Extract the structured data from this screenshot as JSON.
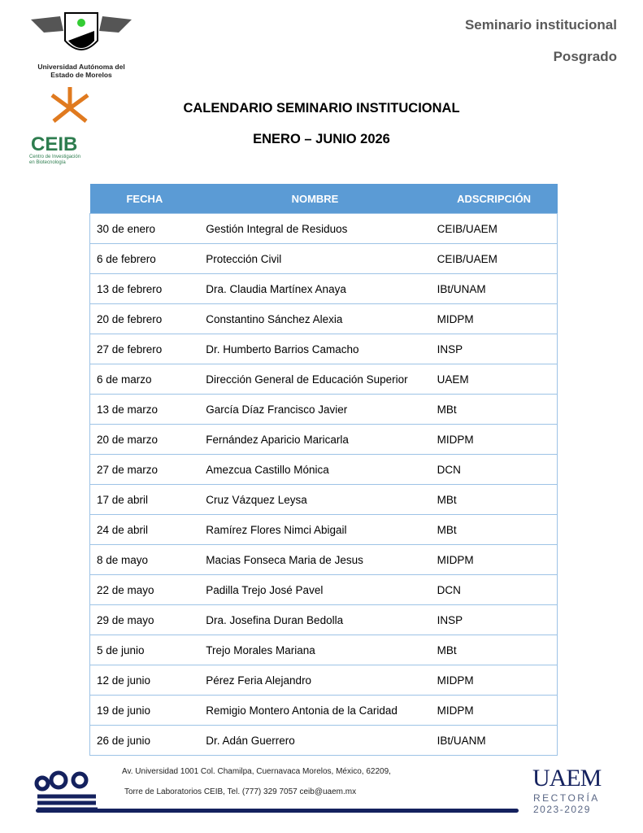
{
  "header": {
    "logo_uaem_text": "Universidad Autónoma del Estado de Morelos",
    "logo_ceib_text": "CEIB",
    "logo_ceib_subtext": "Centro de Investigación en Biotecnología",
    "top_right_1": "Seminario institucional",
    "top_right_2": "Posgrado"
  },
  "title": {
    "line1": "CALENDARIO SEMINARIO INSTITUCIONAL",
    "line2": "ENERO – JUNIO 2026"
  },
  "table": {
    "headers": [
      "FECHA",
      "NOMBRE",
      "ADSCRIPCIÓN"
    ],
    "rows": [
      [
        "30 de enero",
        "Gestión Integral de Residuos",
        "CEIB/UAEM"
      ],
      [
        "6 de febrero",
        "Protección Civil",
        "CEIB/UAEM"
      ],
      [
        "13 de febrero",
        "Dra. Claudia Martínex Anaya",
        "IBt/UNAM"
      ],
      [
        "20 de febrero",
        "Constantino Sánchez Alexia",
        "MIDPM"
      ],
      [
        "27 de febrero",
        "Dr. Humberto Barrios Camacho",
        "INSP"
      ],
      [
        "6 de marzo",
        "Dirección General de Educación Superior",
        "UAEM"
      ],
      [
        "13 de marzo",
        "García Díaz Francisco Javier",
        "MBt"
      ],
      [
        "20 de marzo",
        "Fernández Aparicio Maricarla",
        "MIDPM"
      ],
      [
        "27 de marzo",
        "Amezcua Castillo Mónica",
        "DCN"
      ],
      [
        "17 de abril",
        "Cruz Vázquez Leysa",
        "MBt"
      ],
      [
        "24 de abril",
        "Ramírez Flores Nimci Abigail",
        "MBt"
      ],
      [
        "8 de mayo",
        "Macias Fonseca Maria de Jesus",
        "MIDPM"
      ],
      [
        "22 de mayo",
        "Padilla Trejo José Pavel",
        "DCN"
      ],
      [
        "29 de mayo",
        "Dra. Josefina Duran Bedolla",
        "INSP"
      ],
      [
        "5 de junio",
        "Trejo Morales Mariana",
        "MBt"
      ],
      [
        "12 de junio",
        "Pérez Feria Alejandro",
        "MIDPM"
      ],
      [
        "19 de junio",
        "Remigio Montero Antonia de la Caridad",
        "MIDPM"
      ],
      [
        "26 de junio",
        "Dr. Adán Guerrero",
        "IBt/UANM"
      ]
    ]
  },
  "footer": {
    "address1": "Av. Universidad 1001 Col. Chamilpa, Cuernavaca Morelos, México, 62209,",
    "address2": "Torre de Laboratorios CEIB, Tel. (777) 329 7057 ceib@uaem.mx",
    "uaem": "UAEM",
    "rectoria": "RECTORÍA",
    "period": "2023-2029"
  },
  "colors": {
    "header_bg": "#5b9bd5",
    "border": "#9dc3e6",
    "navy": "#14215e",
    "ceib_green": "#2e7d4f",
    "ceib_orange": "#e07a1f"
  }
}
